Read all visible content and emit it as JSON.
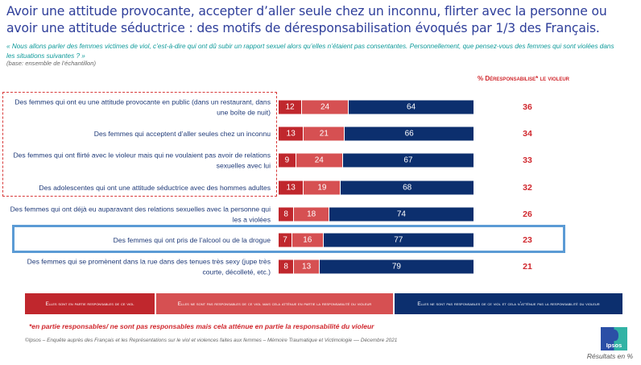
{
  "header": {
    "title": "Avoir une attitude provocante, accepter d’aller seule chez un inconnu, flirter avec la personne ou avoir une attitude séductrice : des motifs de déresponsabilisation évoqués par 1/3 des Français.",
    "question": "« Nous allons parler des femmes victimes de viol, c’est-à-dire qui ont dû subir un rapport sexuel alors qu’elles n’étaient pas consentantes. Personnellement, que pensez-vous des femmes qui sont violées dans les situations suivantes ?  »",
    "base": "(base: ensemble de l’échantillon)"
  },
  "chart_data": {
    "type": "bar",
    "stacked": true,
    "orientation": "horizontal",
    "title": "Avoir une attitude provocante, accepter d’aller seule chez un inconnu, flirter avec la personne ou avoir une attitude séductrice : des motifs de déresponsabilisation évoqués par 1/3 des Français.",
    "xlabel": "",
    "ylabel": "",
    "xlim": [
      0,
      100
    ],
    "unit": "%",
    "categories": [
      "Des femmes qui ont eu une attitude provocante en public (dans un restaurant, dans une boîte de nuit)",
      "Des femmes qui acceptent d’aller seules chez un inconnu",
      "Des femmes qui ont flirté avec le violeur mais qui ne voulaient pas avoir de relations sexuelles avec lui",
      "Des adolescentes qui ont une attitude séductrice avec des hommes adultes",
      "Des femmes qui ont déjà eu auparavant des relations sexuelles avec la personne qui les a violées",
      "Des femmes qui ont pris de l’alcool ou de la drogue",
      "Des femmes qui se promènent dans la rue dans des tenues très sexy (jupe très courte, décolleté, etc.)"
    ],
    "series": [
      {
        "name": "Elles sont en partie responsables de ce viol",
        "color": "#c0272d",
        "values": [
          12,
          13,
          9,
          13,
          8,
          7,
          8
        ]
      },
      {
        "name": "Elles ne sont pas responsables de ce viol mais cela atténue en partie la responsabilité du violeur",
        "color": "#d65052",
        "values": [
          24,
          21,
          24,
          19,
          18,
          16,
          13
        ]
      },
      {
        "name": "Elles ne sont pas responsables de ce viol et cela n’atténue pas la responsabilité du violeur",
        "color": "#0c2f6e",
        "values": [
          64,
          66,
          67,
          68,
          74,
          77,
          79
        ]
      }
    ],
    "score_header": "% Déresponsabilise* le violeur",
    "scores": [
      36,
      34,
      33,
      32,
      26,
      23,
      21
    ],
    "highlighted_group": [
      0,
      1,
      2,
      3
    ],
    "highlighted_row": 5,
    "legend_position": "bottom"
  },
  "legend": [
    "Elles sont en partie responsables de ce viol",
    "Elles ne sont pas responsables de ce viol mais cela atténue en partie la responsabilité du violeur",
    "Elles ne sont pas responsables de ce viol et cela n’atténue pas la responsabilité du violeur"
  ],
  "footer": {
    "footnote": "*en partie responsables/ ne sont pas responsables mais cela atténue en partie la responsabilité du violeur",
    "source": "©Ipsos – Enquête auprès des Français et les Représentations sur le viol et violences faites aux femmes – Mémoire Traumatique et Victimologie –– Décembre 2021",
    "logo_text": "Ipsos",
    "results_note": "Résultats en %"
  }
}
